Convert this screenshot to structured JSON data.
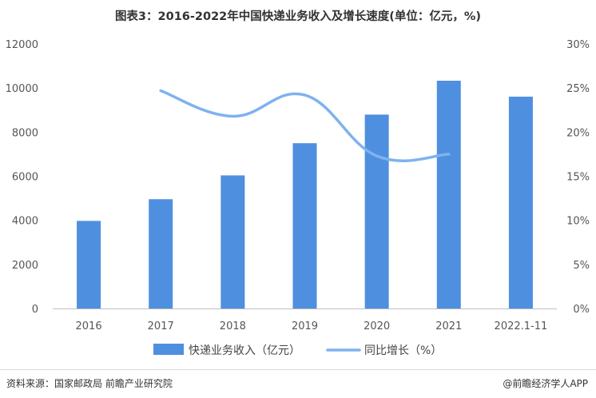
{
  "title": "图表3：2016-2022年中国快递业务收入及增长速度(单位：亿元，%)",
  "footer": {
    "source": "资料来源：国家邮政局 前瞻产业研究院",
    "brand": "@前瞻经济学人APP"
  },
  "colors": {
    "bar": "#4f8fdf",
    "line": "#7fb2ee",
    "axis": "#bfbfbf"
  },
  "chart_data": {
    "type": "bar",
    "categories": [
      "2016",
      "2017",
      "2018",
      "2019",
      "2020",
      "2021",
      "2022.1-11"
    ],
    "series": [
      {
        "name": "快递业务收入（亿元）",
        "type": "bar",
        "axis": "left",
        "values": [
          3974,
          4957,
          6038,
          7498,
          8795,
          10332,
          9610
        ]
      },
      {
        "name": "同比增长（%）",
        "type": "line",
        "axis": "right",
        "values": [
          null,
          24.7,
          21.8,
          24.2,
          17.3,
          17.5,
          null
        ]
      }
    ],
    "ylim_left": [
      0,
      12000
    ],
    "yticks_left": [
      "0",
      "2000",
      "4000",
      "6000",
      "8000",
      "10000",
      "12000"
    ],
    "ylim_right": [
      0,
      30
    ],
    "yticks_right": [
      "0%",
      "5%",
      "10%",
      "15%",
      "20%",
      "25%",
      "30%"
    ],
    "grid": false,
    "legend_position": "bottom"
  }
}
